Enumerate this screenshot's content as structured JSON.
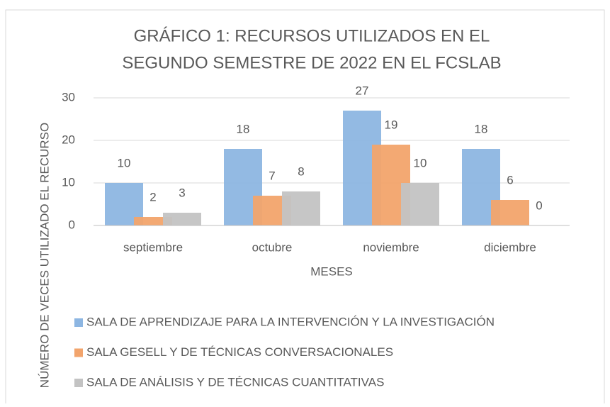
{
  "chart_data": {
    "type": "bar",
    "title": [
      "GRÁFICO 1: RECURSOS UTILIZADOS EN EL",
      "SEGUNDO SEMESTRE DE 2022  EN EL FCSLAB"
    ],
    "x_label": "MESES",
    "y_label": "NÚMERO DE VECES UTILIZADO EL RECURSO",
    "categories": [
      "septiembre",
      "octubre",
      "noviembre",
      "diciembre"
    ],
    "series": [
      {
        "name": "SALA DE APRENDIZAJE PARA LA INTERVENCIÓN Y LA INVESTIGACIÓN",
        "color": "#8db6e2",
        "values": [
          10,
          18,
          27,
          18
        ]
      },
      {
        "name": "SALA GESELL Y DE TÉCNICAS CONVERSACIONALES",
        "color": "#f2a46c",
        "values": [
          2,
          7,
          19,
          6
        ]
      },
      {
        "name": "SALA DE ANÁLISIS Y DE TÉCNICAS CUANTITATIVAS",
        "color": "#c3c3c3",
        "values": [
          3,
          8,
          10,
          0
        ]
      }
    ],
    "ylim": [
      0,
      30
    ],
    "yticks": [
      0,
      10,
      20,
      30
    ],
    "grid": true,
    "legend": "bottom"
  }
}
